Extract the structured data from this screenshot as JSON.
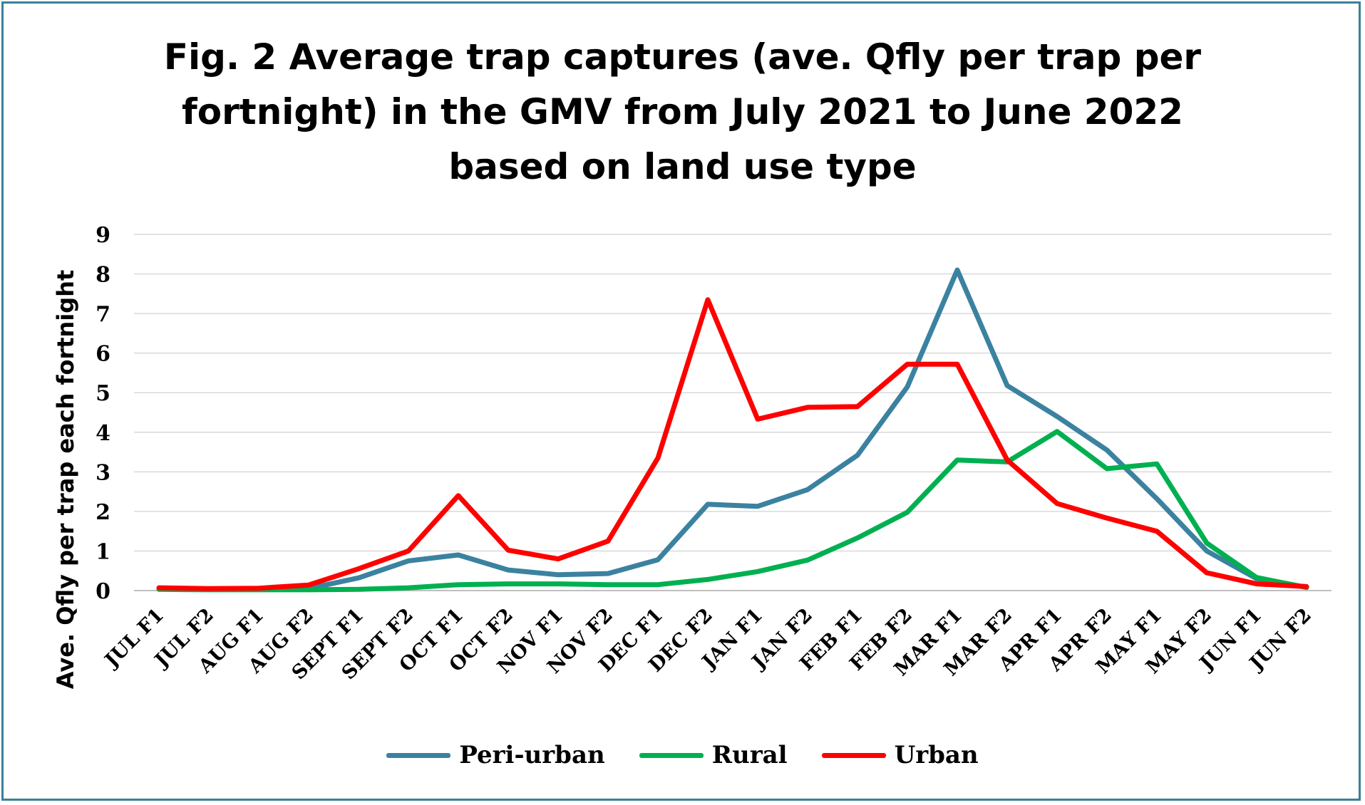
{
  "chart_data": {
    "type": "line",
    "title_lines": [
      "Fig. 2 Average trap captures (ave. Qfly per trap per",
      "fortnight) in the GMV from July 2021 to June 2022",
      "based on land use type"
    ],
    "xlabel": "",
    "ylabel": "Ave. Qfly per trap each fortnight",
    "ylim": [
      0,
      9
    ],
    "yticks": [
      "0",
      "1",
      "2",
      "3",
      "4",
      "5",
      "6",
      "7",
      "8",
      "9"
    ],
    "grid": true,
    "legend_position": "bottom",
    "categories": [
      "JUL F1",
      "JUL F2",
      "AUG F1",
      "AUG F2",
      "SEPT F1",
      "SEPT F2",
      "OCT  F1",
      "OCT F2",
      "NOV F1",
      "NOV F2",
      "DEC F1",
      "DEC F2",
      "JAN F1",
      "JAN F2",
      "FEB F1",
      "FEB F2",
      "MAR F1",
      "MAR F2",
      "APR F1",
      "APR F2",
      "MAY F1",
      "MAY F2",
      "JUN F1",
      "JUN F2"
    ],
    "series": [
      {
        "name": "Peri-urban",
        "color": "#3b82a0",
        "values": [
          0.05,
          0.03,
          0.03,
          0.05,
          0.32,
          0.75,
          0.9,
          0.52,
          0.4,
          0.43,
          0.78,
          2.18,
          2.13,
          2.55,
          3.42,
          5.15,
          8.1,
          5.18,
          4.4,
          3.55,
          2.32,
          1.0,
          0.3,
          0.08
        ]
      },
      {
        "name": "Rural",
        "color": "#00b050",
        "values": [
          0.03,
          0.02,
          0.02,
          0.02,
          0.03,
          0.07,
          0.15,
          0.17,
          0.17,
          0.15,
          0.15,
          0.28,
          0.48,
          0.77,
          1.33,
          1.98,
          3.3,
          3.25,
          4.02,
          3.08,
          3.2,
          1.2,
          0.33,
          0.08
        ]
      },
      {
        "name": "Urban",
        "color": "#ff0000",
        "values": [
          0.07,
          0.05,
          0.06,
          0.14,
          0.55,
          1.0,
          2.4,
          1.02,
          0.8,
          1.25,
          3.35,
          7.35,
          4.33,
          4.63,
          4.65,
          5.72,
          5.72,
          3.3,
          2.2,
          1.83,
          1.5,
          0.45,
          0.17,
          0.1
        ]
      }
    ]
  }
}
